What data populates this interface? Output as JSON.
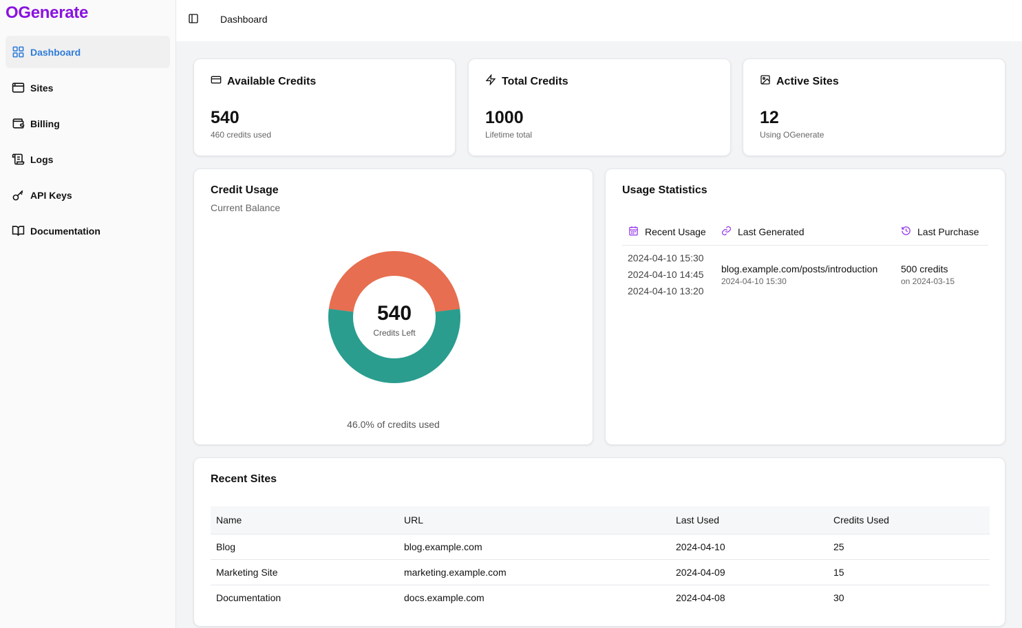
{
  "app": {
    "name": "OGenerate"
  },
  "colors": {
    "brand": "#8a13e0",
    "active_nav": "#2f7cd8",
    "used": "#e76e50",
    "remaining": "#2a9d8f",
    "icon_accent": "#9333ea"
  },
  "sidebar": {
    "items": [
      {
        "label": "Dashboard",
        "icon": "dashboard-grid-icon",
        "active": true
      },
      {
        "label": "Sites",
        "icon": "browser-window-icon"
      },
      {
        "label": "Billing",
        "icon": "wallet-icon"
      },
      {
        "label": "Logs",
        "icon": "scroll-icon"
      },
      {
        "label": "API Keys",
        "icon": "key-icon"
      },
      {
        "label": "Documentation",
        "icon": "book-open-icon"
      }
    ]
  },
  "header": {
    "breadcrumb": "Dashboard",
    "toggle_icon": "sidebar-toggle-icon"
  },
  "stats": [
    {
      "title": "Available Credits",
      "icon": "credit-card-icon",
      "value": "540",
      "sub": "460 credits used"
    },
    {
      "title": "Total Credits",
      "icon": "zap-icon",
      "value": "1000",
      "sub": "Lifetime total"
    },
    {
      "title": "Active Sites",
      "icon": "image-icon",
      "value": "12",
      "sub": "Using OGenerate"
    }
  ],
  "credit_usage": {
    "title": "Credit Usage",
    "subtitle": "Current Balance",
    "center_value": "540",
    "center_label": "Credits Left",
    "used_fraction": 0.46,
    "footer": "46.0% of credits used"
  },
  "usage_stats": {
    "title": "Usage Statistics",
    "columns": [
      {
        "label": "Recent Usage",
        "icon": "calendar-icon"
      },
      {
        "label": "Last Generated",
        "icon": "link-icon"
      },
      {
        "label": "Last Purchase",
        "icon": "history-icon"
      }
    ],
    "recent_usage": [
      "2024-04-10 15:30",
      "2024-04-10 14:45",
      "2024-04-10 13:20"
    ],
    "last_generated": {
      "url": "blog.example.com/posts/introduction",
      "time": "2024-04-10 15:30"
    },
    "last_purchase": {
      "amount": "500 credits",
      "date": "on 2024-03-15"
    }
  },
  "recent_sites": {
    "title": "Recent Sites",
    "headers": [
      "Name",
      "URL",
      "Last Used",
      "Credits Used"
    ],
    "rows": [
      [
        "Blog",
        "blog.example.com",
        "2024-04-10",
        "25"
      ],
      [
        "Marketing Site",
        "marketing.example.com",
        "2024-04-09",
        "15"
      ],
      [
        "Documentation",
        "docs.example.com",
        "2024-04-08",
        "30"
      ]
    ]
  }
}
